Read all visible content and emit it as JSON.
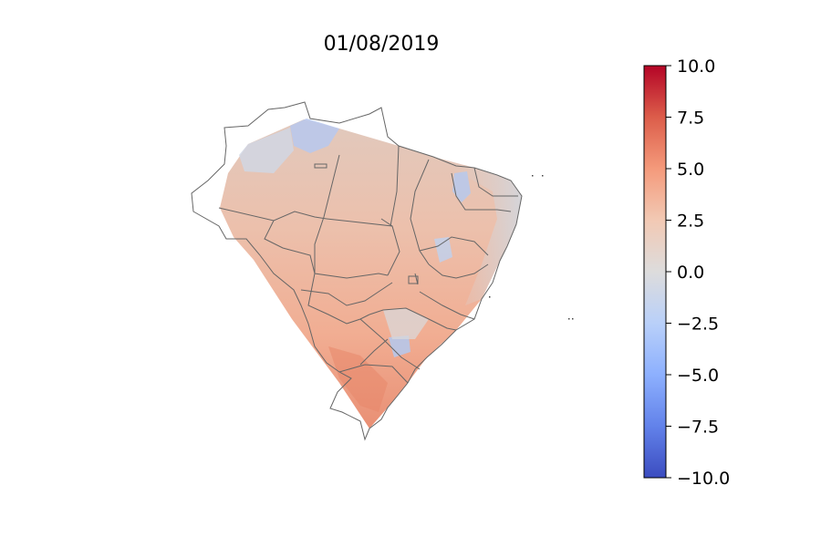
{
  "title": "01/08/2019",
  "colorbar": {
    "min": -10.0,
    "max": 10.0,
    "ticks": [
      "10.0",
      "7.5",
      "5.0",
      "2.5",
      "0.0",
      "−2.5",
      "−5.0",
      "−7.5",
      "−10.0"
    ],
    "tick_values": [
      10.0,
      7.5,
      5.0,
      2.5,
      0.0,
      -2.5,
      -5.0,
      -7.5,
      -10.0
    ],
    "colormap": "coolwarm",
    "colors": {
      "low": "#3b4cc0",
      "mid": "#dddddd",
      "high": "#b40426"
    }
  },
  "map": {
    "region": "Brazil states",
    "dominant_anomaly_color": "#efb49b",
    "border_color": "#666666"
  }
}
